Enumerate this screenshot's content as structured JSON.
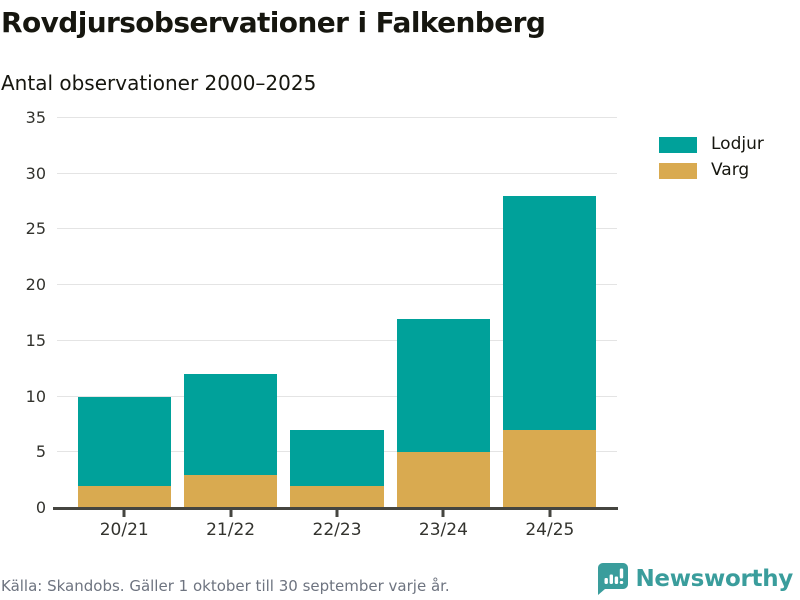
{
  "header": {
    "title": "Rovdjursobservationer i Falkenberg",
    "subtitle": "Antal observationer 2000–2025"
  },
  "chart_data": {
    "type": "bar",
    "stacked": true,
    "title": "Rovdjursobservationer i Falkenberg",
    "subtitle": "Antal observationer 2000–2025",
    "categories": [
      "20/21",
      "21/22",
      "22/23",
      "23/24",
      "24/25"
    ],
    "series": [
      {
        "name": "Lodjur",
        "color": "#00a19a",
        "values": [
          8,
          9,
          5,
          12,
          21
        ]
      },
      {
        "name": "Varg",
        "color": "#d9aa50",
        "values": [
          2,
          3,
          2,
          5,
          7
        ]
      }
    ],
    "stack_order_bottom_to_top": [
      "Varg",
      "Lodjur"
    ],
    "stack_totals": [
      10,
      12,
      7,
      17,
      28
    ],
    "xlabel": "",
    "ylabel": "",
    "ylim": [
      0,
      35
    ],
    "yticks": [
      0,
      5,
      10,
      15,
      20,
      25,
      30,
      35
    ],
    "grid": true,
    "legend_position": "right"
  },
  "footer": {
    "source": "Källa: Skandobs. Gäller 1 oktober till 30 september varje år.",
    "brand": "Newsworthy"
  },
  "colors": {
    "lodjur": "#00a19a",
    "varg": "#d9aa50",
    "axis": "#454540",
    "grid": "#e4e4e4",
    "text": "#16160f",
    "muted_text": "#6e7480",
    "brand_teal": "#3a9d9c"
  },
  "icons": {
    "brand_icon": "bar-chart-speech-bubble-icon"
  }
}
